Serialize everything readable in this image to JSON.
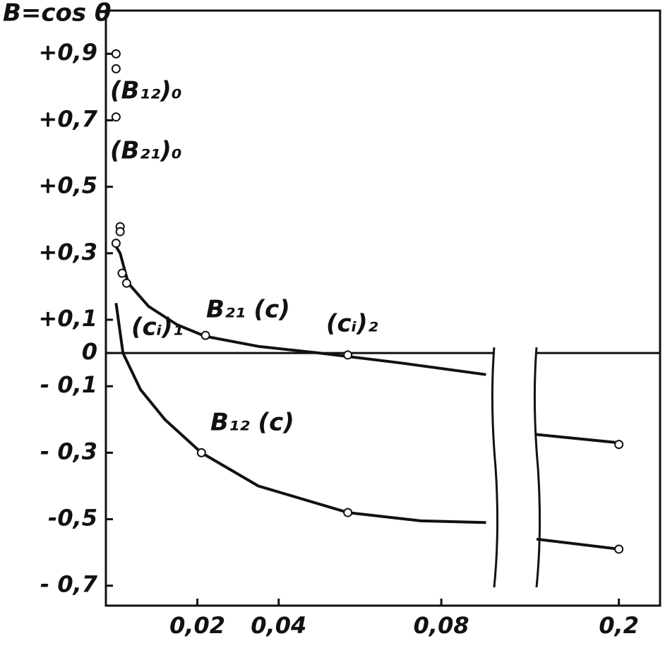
{
  "chart_data": {
    "type": "line",
    "ylabel": "B=cos θ",
    "xlim": [
      -0.0025,
      0.21
    ],
    "xbreak": [
      0.093,
      0.18
    ],
    "ylim": [
      -0.76,
      1.03
    ],
    "yticks": [
      {
        "value": 0.9,
        "label": "+0,9"
      },
      {
        "value": 0.7,
        "label": "+0,7"
      },
      {
        "value": 0.5,
        "label": "+0,5"
      },
      {
        "value": 0.3,
        "label": "+0,3"
      },
      {
        "value": 0.1,
        "label": "+0,1"
      },
      0,
      {
        "value": -0.1,
        "label": "- 0,1"
      },
      {
        "value": -0.3,
        "label": "- 0,3"
      },
      {
        "value": -0.5,
        "label": "-0,5"
      },
      {
        "value": -0.7,
        "label": "- 0,7"
      }
    ],
    "xticks": [
      {
        "value": 0.02,
        "label": "0,02"
      },
      {
        "value": 0.04,
        "label": "0,04"
      },
      {
        "value": 0.08,
        "label": "0,08"
      },
      {
        "value": 0.2,
        "label": "0,2"
      }
    ],
    "series": [
      {
        "name": "B₂₁ (c)",
        "color": "#111111",
        "x": [
          0,
          0.001,
          0.003,
          0.008,
          0.015,
          0.022,
          0.035,
          0.05,
          0.07,
          0.091,
          0.13,
          0.18,
          0.2
        ],
        "values": [
          0.32,
          0.3,
          0.21,
          0.14,
          0.085,
          0.05,
          0.02,
          0.0,
          -0.03,
          -0.065,
          null,
          -0.245,
          -0.27
        ],
        "marker_x": [
          0,
          0.001,
          0.001,
          0,
          0.0026,
          0.022,
          0.057,
          0.2
        ],
        "marker_values": [
          0.71,
          0.38,
          0.365,
          0.33,
          0.21,
          0.053,
          -0.006,
          -0.275
        ]
      },
      {
        "name": "B₁₂ (c)",
        "color": "#111111",
        "x": [
          0,
          0.0017,
          0.006,
          0.012,
          0.021,
          0.035,
          0.057,
          0.075,
          0.091,
          0.13,
          0.18,
          0.2
        ],
        "values": [
          0.15,
          0.0,
          -0.11,
          -0.2,
          -0.3,
          -0.4,
          -0.48,
          -0.505,
          -0.51,
          null,
          -0.56,
          -0.59
        ],
        "marker_x": [
          0,
          0,
          0.0015,
          0.021,
          0.057,
          0.2
        ],
        "marker_values": [
          0.9,
          0.855,
          0.24,
          -0.3,
          -0.48,
          -0.59
        ]
      }
    ],
    "annotations": [
      "(B₁₂)₀",
      "(B₂₁)₀",
      "(cᵢ)₁",
      "(cᵢ)₂"
    ]
  }
}
